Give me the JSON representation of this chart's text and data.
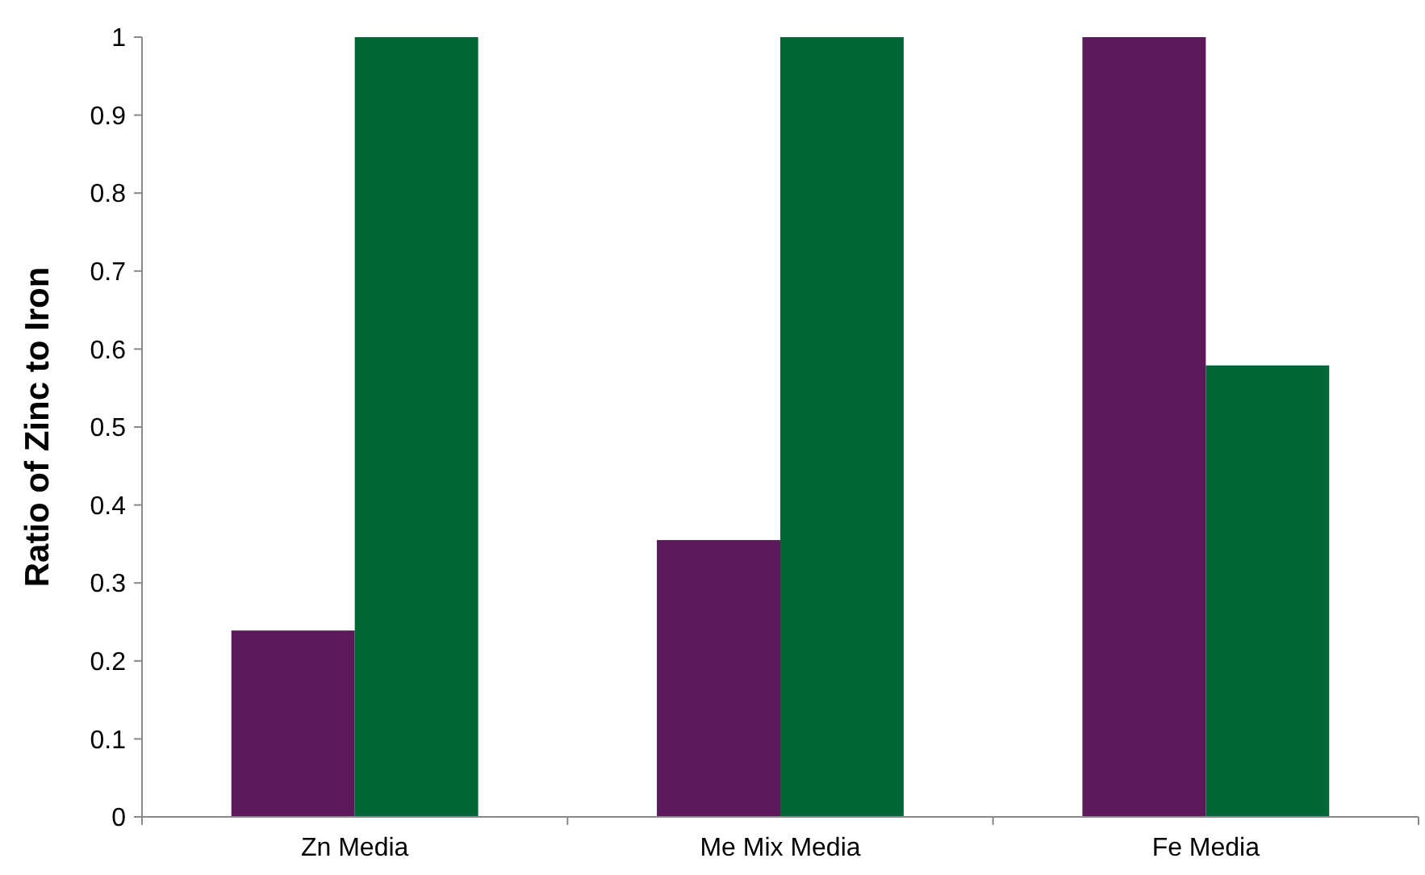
{
  "chart_data": {
    "type": "bar",
    "ylabel": "Ratio of Zinc to Iron",
    "categories": [
      "Zn Media",
      "Me Mix Media",
      "Fe Media"
    ],
    "series": [
      {
        "color": "#5c1a5b",
        "values": [
          0.239,
          0.355,
          1
        ]
      },
      {
        "color": "#006837",
        "values": [
          1,
          1,
          0.579
        ]
      }
    ],
    "ylim": [
      0,
      1
    ],
    "yticks": [
      0,
      0.1,
      0.2,
      0.3,
      0.4,
      0.5,
      0.6,
      0.7,
      0.8,
      0.9,
      1
    ],
    "grid": false
  }
}
